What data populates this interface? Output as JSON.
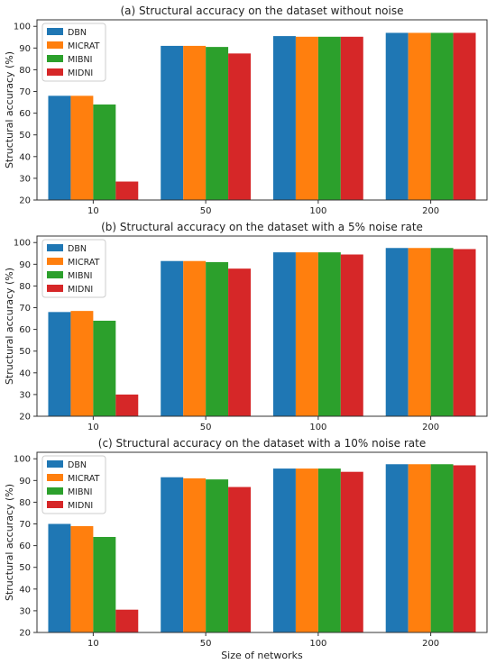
{
  "chart_data": [
    {
      "type": "bar",
      "title": "(a) Structural accuracy on the dataset without noise",
      "xlabel": "",
      "ylabel": "Structural accuracy (%)",
      "categories": [
        "10",
        "50",
        "100",
        "200"
      ],
      "ylim": [
        20,
        103
      ],
      "yticks": [
        20,
        30,
        40,
        50,
        60,
        70,
        80,
        90,
        100
      ],
      "legend_position": "upper-left",
      "series": [
        {
          "name": "DBN",
          "color": "#1f77b4",
          "values": [
            68.0,
            91.0,
            95.5,
            97.0
          ]
        },
        {
          "name": "MICRAT",
          "color": "#ff7f0e",
          "values": [
            68.0,
            91.0,
            95.2,
            97.0
          ]
        },
        {
          "name": "MIBNI",
          "color": "#2ca02c",
          "values": [
            64.0,
            90.5,
            95.2,
            97.0
          ]
        },
        {
          "name": "MIDNI",
          "color": "#d62728",
          "values": [
            28.5,
            87.5,
            95.2,
            97.0
          ]
        }
      ]
    },
    {
      "type": "bar",
      "title": "(b) Structural accuracy on the dataset with a 5% noise rate",
      "xlabel": "",
      "ylabel": "Structural accuracy (%)",
      "categories": [
        "10",
        "50",
        "100",
        "200"
      ],
      "ylim": [
        20,
        103
      ],
      "yticks": [
        20,
        30,
        40,
        50,
        60,
        70,
        80,
        90,
        100
      ],
      "legend_position": "upper-left",
      "series": [
        {
          "name": "DBN",
          "color": "#1f77b4",
          "values": [
            68.0,
            91.5,
            95.5,
            97.5
          ]
        },
        {
          "name": "MICRAT",
          "color": "#ff7f0e",
          "values": [
            68.5,
            91.5,
            95.5,
            97.5
          ]
        },
        {
          "name": "MIBNI",
          "color": "#2ca02c",
          "values": [
            64.0,
            91.0,
            95.5,
            97.5
          ]
        },
        {
          "name": "MIDNI",
          "color": "#d62728",
          "values": [
            30.0,
            88.0,
            94.5,
            97.0
          ]
        }
      ]
    },
    {
      "type": "bar",
      "title": "(c) Structural accuracy on the dataset with a 10% noise rate",
      "xlabel": "Size of networks",
      "ylabel": "Structural accuracy (%)",
      "categories": [
        "10",
        "50",
        "100",
        "200"
      ],
      "ylim": [
        20,
        103
      ],
      "yticks": [
        20,
        30,
        40,
        50,
        60,
        70,
        80,
        90,
        100
      ],
      "legend_position": "upper-left",
      "series": [
        {
          "name": "DBN",
          "color": "#1f77b4",
          "values": [
            70.0,
            91.5,
            95.5,
            97.5
          ]
        },
        {
          "name": "MICRAT",
          "color": "#ff7f0e",
          "values": [
            69.0,
            91.0,
            95.5,
            97.5
          ]
        },
        {
          "name": "MIBNI",
          "color": "#2ca02c",
          "values": [
            64.0,
            90.5,
            95.5,
            97.5
          ]
        },
        {
          "name": "MIDNI",
          "color": "#d62728",
          "values": [
            30.5,
            87.0,
            94.0,
            97.0
          ]
        }
      ]
    }
  ]
}
